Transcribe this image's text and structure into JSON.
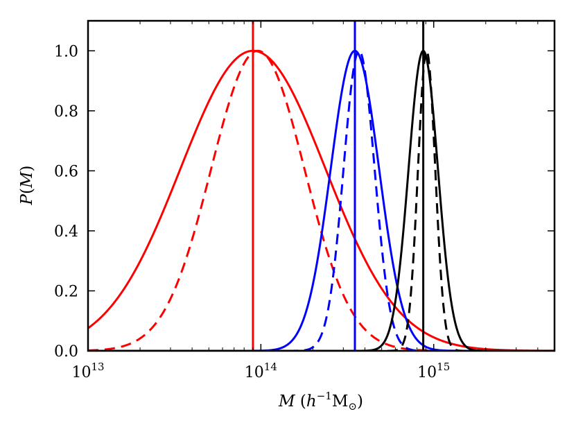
{
  "chart_data": {
    "type": "line",
    "title": "",
    "xlabel": "M (h⁻¹M⊙)",
    "ylabel": "P(M)",
    "xscale": "log",
    "xlim": [
      10000000000000.0,
      5000000000000000.0
    ],
    "ylim": [
      0.0,
      1.1
    ],
    "x_ticks": [
      {
        "value": 10000000000000.0,
        "base": "10",
        "exp": "13"
      },
      {
        "value": 100000000000000.0,
        "base": "10",
        "exp": "14"
      },
      {
        "value": 1000000000000000.0,
        "base": "10",
        "exp": "15"
      }
    ],
    "y_ticks": [
      {
        "value": 0.0,
        "label": "0.0"
      },
      {
        "value": 0.2,
        "label": "0.2"
      },
      {
        "value": 0.4,
        "label": "0.4"
      },
      {
        "value": 0.6,
        "label": "0.6"
      },
      {
        "value": 0.8,
        "label": "0.8"
      },
      {
        "value": 1.0,
        "label": "1.0"
      }
    ],
    "series": [
      {
        "name": "red-solid",
        "color": "#ff0000",
        "style": "solid",
        "peak": 90000000000000.0,
        "sigma_log10": 0.42
      },
      {
        "name": "red-dashed",
        "color": "#ff0000",
        "style": "dashed",
        "peak": 96000000000000.0,
        "sigma_log10": 0.27
      },
      {
        "name": "blue-solid",
        "color": "#0000ff",
        "style": "solid",
        "peak": 350000000000000.0,
        "sigma_log10": 0.14
      },
      {
        "name": "blue-dashed",
        "color": "#0000ff",
        "style": "dashed",
        "peak": 370000000000000.0,
        "sigma_log10": 0.09
      },
      {
        "name": "black-solid",
        "color": "#000000",
        "style": "solid",
        "peak": 870000000000000.0,
        "sigma_log10": 0.085
      },
      {
        "name": "black-dashed",
        "color": "#000000",
        "style": "dashed",
        "peak": 910000000000000.0,
        "sigma_log10": 0.05
      }
    ],
    "vlines": [
      {
        "name": "red-marker",
        "color": "#ff0000",
        "x": 90000000000000.0
      },
      {
        "name": "blue-marker",
        "color": "#0000ff",
        "x": 350000000000000.0
      },
      {
        "name": "black-marker",
        "color": "#000000",
        "x": 870000000000000.0
      }
    ]
  }
}
